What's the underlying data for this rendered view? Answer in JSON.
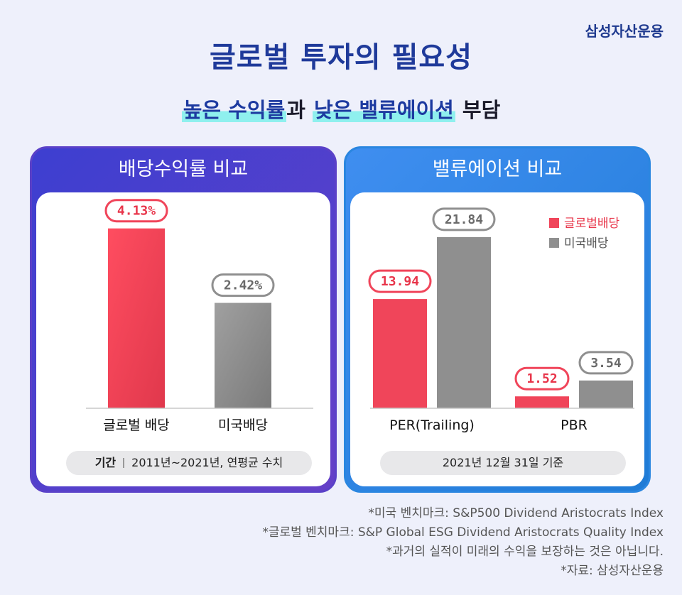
{
  "brand": "삼성자산운용",
  "title": "글로벌 투자의 필요성",
  "subtitle": {
    "part1": "높은 수익률",
    "part2": "과 ",
    "part3": "낮은 밸류에이션",
    "part4": " 부담"
  },
  "left_panel": {
    "header": "배당수익률 비교",
    "period_label": "기간",
    "period_value": "2011년~2021년, 연평균 수치"
  },
  "right_panel": {
    "header": "밸류에이션 비교",
    "note": "2021년 12월 31일 기준"
  },
  "colors": {
    "global": "#f0455a",
    "us": "#8f8f8f",
    "label_global": "#e8354a",
    "label_us": "#6a6a6a"
  },
  "chart_data": [
    {
      "type": "bar",
      "categories": [
        "글로벌 배당",
        "미국배당"
      ],
      "values": [
        4.13,
        2.42
      ],
      "value_labels": [
        "4.13%",
        "2.42%"
      ],
      "ylim": [
        0,
        4.5
      ]
    },
    {
      "type": "bar",
      "categories": [
        "PER(Trailing)",
        "PBR"
      ],
      "series": [
        {
          "name": "글로벌배당",
          "values": [
            13.94,
            1.52
          ],
          "value_labels": [
            "13.94",
            "1.52"
          ]
        },
        {
          "name": "미국배당",
          "values": [
            21.84,
            3.54
          ],
          "value_labels": [
            "21.84",
            "3.54"
          ]
        }
      ],
      "ylim": [
        0,
        25
      ]
    }
  ],
  "footnotes": [
    "*미국 벤치마크: S&P500 Dividend Aristocrats Index",
    "*글로벌 벤치마크: S&P Global ESG Dividend Aristocrats Quality Index",
    "*과거의 실적이 미래의 수익을 보장하는 것은 아닙니다.",
    "*자료: 삼성자산운용"
  ]
}
